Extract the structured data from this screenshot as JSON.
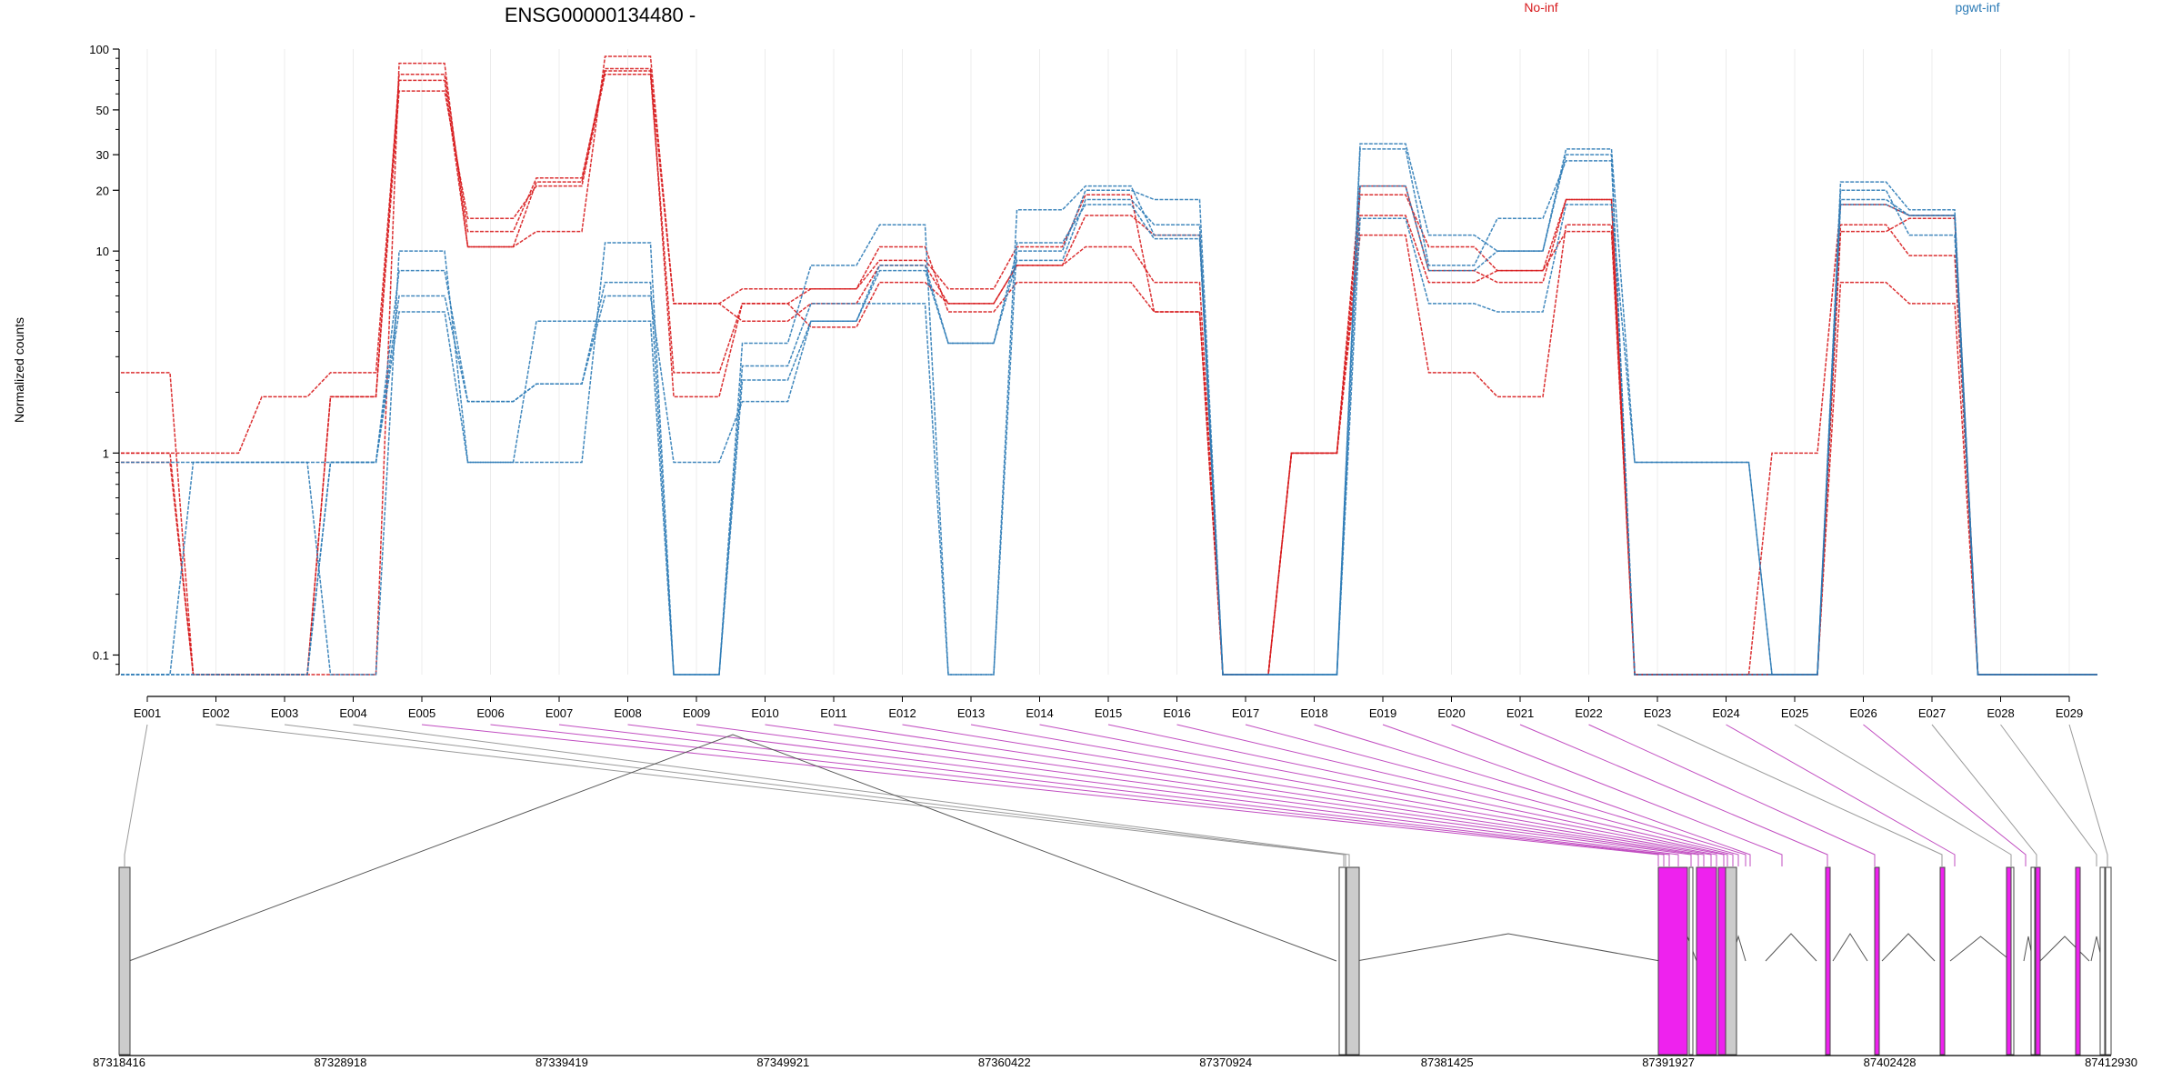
{
  "chart_data": {
    "type": "line",
    "title": "ENSG00000134480 -",
    "xlabel": "",
    "ylabel": "Normalized counts",
    "y_scale": "log",
    "ylim": [
      0.08,
      100
    ],
    "y_ticks": [
      0.1,
      1,
      10,
      20,
      30,
      50,
      100
    ],
    "y_tick_labels": [
      "0.1",
      "1",
      "10",
      "20",
      "30",
      "50",
      "100"
    ],
    "grid_x": true,
    "legend": [
      "No-inf",
      "pgwt-inf"
    ],
    "colors": {
      "No-inf": "#d7191c",
      "pgwt-inf": "#2c7bb6",
      "exon_highlight": "#ee22ee",
      "exon_plain": "#cccccc"
    },
    "categories": [
      "E001",
      "E002",
      "E003",
      "E004",
      "E005",
      "E006",
      "E007",
      "E008",
      "E009",
      "E010",
      "E011",
      "E012",
      "E013",
      "E014",
      "E015",
      "E016",
      "E017",
      "E018",
      "E019",
      "E020",
      "E021",
      "E022",
      "E023",
      "E024",
      "E025",
      "E026",
      "E027",
      "E028",
      "E029"
    ],
    "series": [
      {
        "group": "No-inf",
        "values": [
          2.5,
          0.08,
          0.08,
          1.9,
          75,
          12.5,
          23,
          78,
          5.5,
          4.5,
          5.5,
          8.5,
          5.5,
          8.5,
          15,
          12,
          0.08,
          1,
          21,
          8,
          7,
          18,
          0.08,
          0.08,
          1,
          17,
          15,
          0.08,
          0.08
        ]
      },
      {
        "group": "No-inf",
        "values": [
          1,
          1,
          1.9,
          2.5,
          70,
          10.5,
          22,
          80,
          1.9,
          5.5,
          6.5,
          9,
          6.5,
          10.5,
          19,
          5,
          0.08,
          1,
          19,
          10.5,
          8,
          18,
          0.08,
          0.08,
          0.08,
          12.5,
          14.5,
          0.08,
          0.08
        ]
      },
      {
        "group": "No-inf",
        "values": [
          0.9,
          0.08,
          0.08,
          1.9,
          62,
          14.5,
          21,
          75,
          2.5,
          5.5,
          4.2,
          7,
          5.5,
          8.5,
          10.5,
          7,
          0.08,
          1,
          12,
          2.5,
          1.9,
          13.5,
          0.08,
          0.08,
          0.08,
          7,
          5.5,
          0.08,
          0.08
        ]
      },
      {
        "group": "No-inf",
        "values": [
          1,
          0.08,
          0.08,
          0.08,
          85,
          10.5,
          12.5,
          92,
          5.5,
          6.5,
          6.5,
          10.5,
          5,
          7,
          7,
          5,
          0.08,
          1,
          15,
          7,
          8,
          12.5,
          0.08,
          0.08,
          0.08,
          13.5,
          9.5,
          0.08,
          0.08
        ]
      },
      {
        "group": "pgwt-inf",
        "values": [
          0.9,
          0.9,
          0.9,
          0.9,
          6,
          1.8,
          2.2,
          6,
          0.9,
          1.8,
          4.5,
          8,
          3.5,
          10,
          20,
          18,
          0.08,
          0.08,
          34,
          12,
          10,
          32,
          0.9,
          0.9,
          0.08,
          22,
          16,
          0.08,
          0.08
        ]
      },
      {
        "group": "pgwt-inf",
        "values": [
          0.08,
          0.08,
          0.08,
          0.9,
          8,
          1.8,
          2.2,
          7,
          0.08,
          2.3,
          4.5,
          8.5,
          3.5,
          9,
          18,
          13.5,
          0.08,
          0.08,
          21,
          8,
          10,
          30,
          0.08,
          0.08,
          0.08,
          20,
          12,
          0.08,
          0.08
        ]
      },
      {
        "group": "pgwt-inf",
        "values": [
          0.08,
          0.9,
          0.9,
          0.08,
          10,
          0.9,
          0.9,
          11,
          0.08,
          3.5,
          8.5,
          13.5,
          0.08,
          16,
          21,
          12,
          0.08,
          0.08,
          32,
          8.5,
          14.5,
          28,
          0.08,
          0.08,
          0.08,
          17,
          15,
          0.08,
          0.08
        ]
      },
      {
        "group": "pgwt-inf",
        "values": [
          0.08,
          0.08,
          0.08,
          0.9,
          5,
          0.9,
          4.5,
          4.5,
          0.08,
          2.7,
          5.5,
          5.5,
          0.08,
          11,
          17,
          11.5,
          0.08,
          0.08,
          14.5,
          5.5,
          5,
          17,
          0.9,
          0.9,
          0.08,
          18,
          15,
          0.08,
          0.08
        ]
      }
    ],
    "genomic_axis": {
      "labels": [
        "87318416",
        "87328918",
        "87339419",
        "87349921",
        "87360422",
        "87370924",
        "87381425",
        "87391927",
        "87402428",
        "87412930"
      ]
    },
    "exon_highlight": [
      false,
      false,
      false,
      false,
      true,
      true,
      true,
      true,
      true,
      true,
      true,
      true,
      true,
      true,
      true,
      true,
      true,
      true,
      true,
      true,
      true,
      true,
      false,
      true,
      false,
      true,
      false,
      false,
      false
    ]
  }
}
